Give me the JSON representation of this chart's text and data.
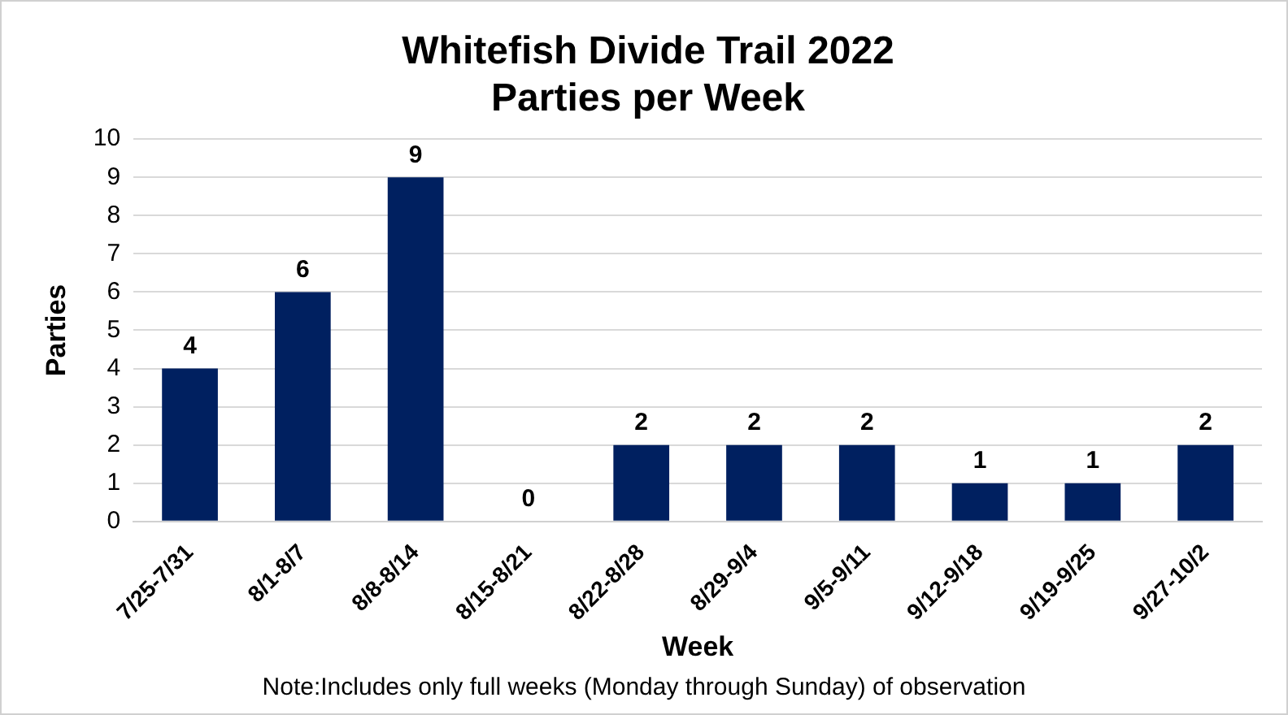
{
  "chart_data": {
    "type": "bar",
    "title": "Whitefish Divide Trail 2022\nParties per Week",
    "xlabel": "Week",
    "ylabel": "Parties",
    "categories": [
      "7/25-7/31",
      "8/1-8/7",
      "8/8-8/14",
      "8/15-8/21",
      "8/22-8/28",
      "8/29-9/4",
      "9/5-9/11",
      "9/12-9/18",
      "9/19-9/25",
      "9/27-10/2"
    ],
    "values": [
      4,
      6,
      9,
      0,
      2,
      2,
      2,
      1,
      1,
      2
    ],
    "color": "#002060",
    "ylim": [
      0,
      10
    ],
    "yticks": [
      0,
      1,
      2,
      3,
      4,
      5,
      6,
      7,
      8,
      9,
      10
    ],
    "grid": "y",
    "data_labels": true,
    "legend": false,
    "annotations": [
      "Note:Includes only full weeks (Monday through Sunday) of observation"
    ]
  }
}
